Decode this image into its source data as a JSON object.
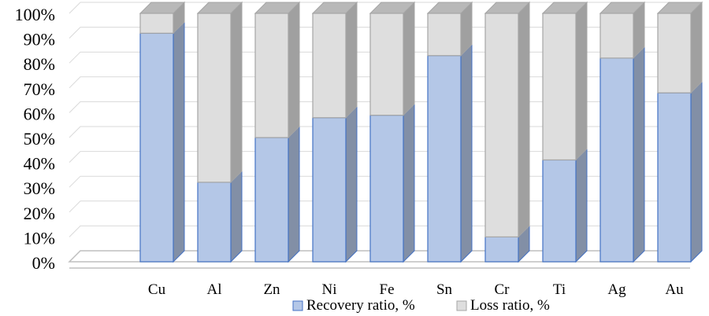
{
  "chart_data": {
    "type": "bar",
    "stacked": true,
    "percent_stacked": true,
    "three_d": true,
    "categories": [
      "Cu",
      "Al",
      "Zn",
      "Ni",
      "Fe",
      "Sn",
      "Cr",
      "Ti",
      "Ag",
      "Au"
    ],
    "series": [
      {
        "name": "Recovery ratio, %",
        "values": [
          92,
          32,
          50,
          58,
          59,
          83,
          10,
          41,
          82,
          68
        ],
        "color": "#b4c7e7",
        "edge": "#4472c4"
      },
      {
        "name": "Loss ratio, %",
        "values": [
          8,
          68,
          50,
          42,
          41,
          17,
          90,
          59,
          18,
          32
        ],
        "color": "#dedede",
        "edge": "#a5a5a5"
      }
    ],
    "yticks": [
      "0%",
      "10%",
      "20%",
      "30%",
      "40%",
      "50%",
      "60%",
      "70%",
      "80%",
      "90%",
      "100%"
    ],
    "ylim": [
      0,
      100
    ],
    "grid": true,
    "legend_position": "bottom"
  }
}
